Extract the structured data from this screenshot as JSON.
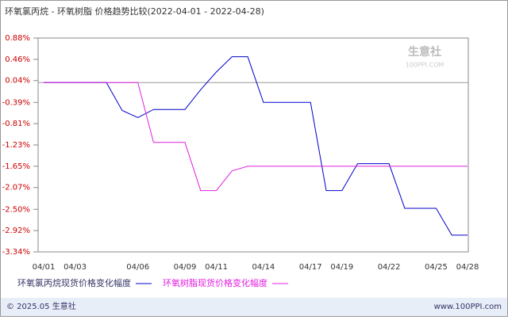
{
  "chart_data": {
    "type": "line",
    "title": "环氧氯丙烷 - 环氧树脂 价格趋势比较(2022-04-01 - 2022-04-28)",
    "watermark": "生意社",
    "watermark_sub": "100PPI.COM",
    "categories": [
      "04/01",
      null,
      "04/03",
      null,
      null,
      null,
      "04/06",
      null,
      null,
      "04/09",
      null,
      "04/11",
      null,
      null,
      "04/14",
      null,
      null,
      "04/17",
      null,
      "04/19",
      null,
      null,
      "04/22",
      null,
      null,
      "04/25",
      null,
      "04/28"
    ],
    "series": [
      {
        "name": "环氧氯丙烷现货价格变化幅度",
        "color": "#0000cc",
        "values": [
          0,
          0,
          0,
          0,
          0,
          -0.55,
          -0.69,
          -0.53,
          -0.53,
          -0.53,
          -0.14,
          0.21,
          0.51,
          0.51,
          -0.39,
          -0.39,
          -0.39,
          -0.39,
          -2.13,
          -2.13,
          -1.6,
          -1.6,
          -1.6,
          -2.48,
          -2.48,
          -2.48,
          -3.01,
          -3.01
        ]
      },
      {
        "name": "环氧树脂现货价格变化幅度",
        "color": "#e020e0",
        "values": [
          0,
          0,
          0,
          0,
          0,
          0,
          0,
          -1.18,
          -1.18,
          -1.18,
          -2.13,
          -2.13,
          -1.74,
          -1.65,
          -1.65,
          -1.65,
          -1.65,
          -1.65,
          -1.65,
          -1.65,
          -1.65,
          -1.65,
          -1.65,
          -1.65,
          -1.65,
          -1.65,
          -1.65,
          -1.65
        ]
      }
    ],
    "ylim": [
      -3.34,
      0.88
    ],
    "yticks": [
      {
        "value": 0.88,
        "label": "0.88%"
      },
      {
        "value": 0.46,
        "label": "0.46%"
      },
      {
        "value": 0.04,
        "label": "0.04%"
      },
      {
        "value": -0.39,
        "label": "-0.39%"
      },
      {
        "value": -0.81,
        "label": "-0.81%"
      },
      {
        "value": -1.23,
        "label": "-1.23%"
      },
      {
        "value": -1.65,
        "label": "-1.65%"
      },
      {
        "value": -2.07,
        "label": "-2.07%"
      },
      {
        "value": -2.5,
        "label": "-2.50%"
      },
      {
        "value": -2.92,
        "label": "-2.92%"
      },
      {
        "value": -3.34,
        "label": "-3.34%"
      }
    ],
    "grid": false,
    "footer_left": "© 2025.05 生意社",
    "footer_right": "www.100PPI.com"
  }
}
